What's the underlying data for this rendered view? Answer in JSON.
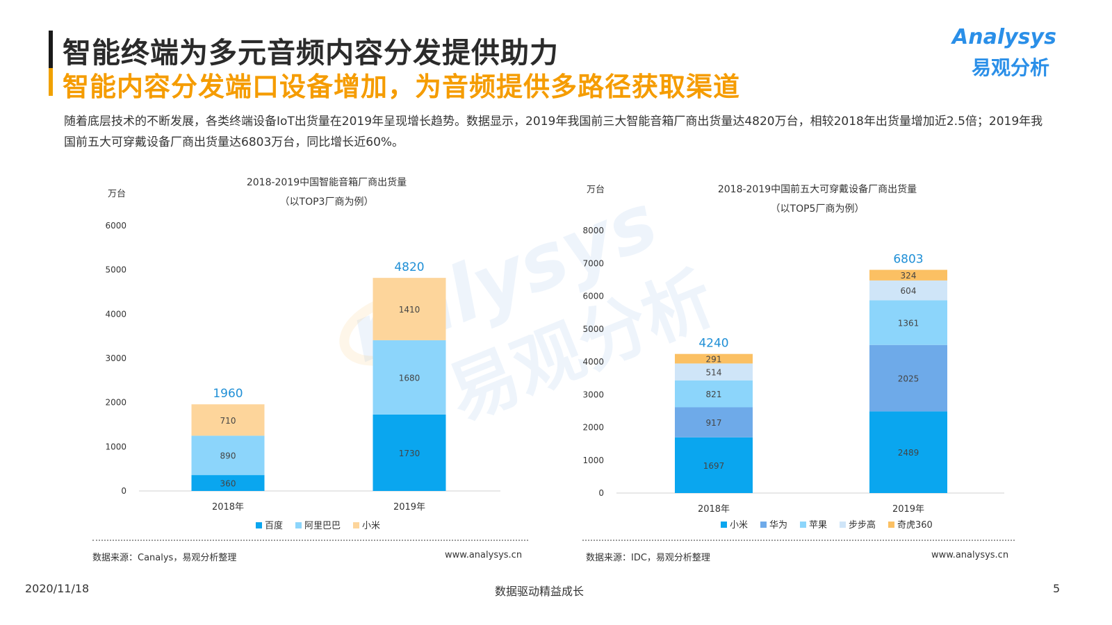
{
  "header": {
    "title": "智能终端为多元音频内容分发提供助力",
    "subtitle": "智能内容分发端口设备增加，为音频提供多路径获取渠道"
  },
  "logo": {
    "en": "Analysys",
    "cn": "易观分析"
  },
  "description": "随着底层技术的不断发展，各类终端设备IoT出货量在2019年呈现增长趋势。数据显示，2019年我国前三大智能音箱厂商出货量达4820万台，相较2018年出货量增加近2.5倍；2019年我国前五大可穿戴设备厂商出货量达6803万台，同比增长近60%。",
  "chart_data": [
    {
      "type": "bar",
      "stacked": true,
      "title": "2018-2019中国智能音箱厂商出货量",
      "subtitle": "（以TOP3厂商为例）",
      "ylabel": "万台",
      "ylim": [
        0,
        6000
      ],
      "yticks": [
        0,
        1000,
        2000,
        3000,
        4000,
        5000,
        6000
      ],
      "categories": [
        "2018年",
        "2019年"
      ],
      "series": [
        {
          "name": "百度",
          "values": [
            360,
            1730
          ],
          "color": "#0aa6ef"
        },
        {
          "name": "阿里巴巴",
          "values": [
            890,
            1680
          ],
          "color": "#8cd5fb"
        },
        {
          "name": "小米",
          "values": [
            710,
            1410
          ],
          "color": "#fdd59b"
        }
      ],
      "totals": [
        1960,
        4820
      ],
      "legend": "bottom",
      "source": "数据来源：Canalys，易观分析整理",
      "website": "www.analysys.cn"
    },
    {
      "type": "bar",
      "stacked": true,
      "title": "2018-2019中国前五大可穿戴设备厂商出货量",
      "subtitle": "（以TOP5厂商为例）",
      "ylabel": "万台",
      "ylim": [
        0,
        8000
      ],
      "yticks": [
        0,
        1000,
        2000,
        3000,
        4000,
        5000,
        6000,
        7000,
        8000
      ],
      "categories": [
        "2018年",
        "2019年"
      ],
      "series": [
        {
          "name": "小米",
          "values": [
            1697,
            2489
          ],
          "color": "#0aa6ef"
        },
        {
          "name": "华为",
          "values": [
            917,
            2025
          ],
          "color": "#6eaae9"
        },
        {
          "name": "苹果",
          "values": [
            821,
            1361
          ],
          "color": "#8cd5fb"
        },
        {
          "name": "步步高",
          "values": [
            514,
            604
          ],
          "color": "#cfe5f8"
        },
        {
          "name": "奇虎360",
          "values": [
            291,
            324
          ],
          "color": "#fbc063"
        }
      ],
      "totals": [
        4240,
        6803
      ],
      "legend": "bottom",
      "source": "数据来源：IDC，易观分析整理",
      "website": "www.analysys.cn"
    }
  ],
  "footer": {
    "date": "2020/11/18",
    "slogan": "数据驱动精益成长",
    "page": "5"
  }
}
